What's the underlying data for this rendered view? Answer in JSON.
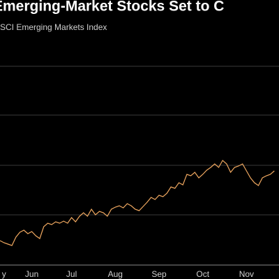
{
  "chart_data": {
    "type": "line",
    "title": "Emerging-Market Stocks Set to C",
    "subtitle": "SCI Emerging Markets Index",
    "categories": [
      null,
      "y",
      null,
      null,
      null,
      null,
      null,
      null,
      "Jun",
      null,
      null,
      null,
      null,
      null,
      null,
      null,
      null,
      null,
      "Jul",
      null,
      null,
      null,
      null,
      null,
      null,
      null,
      null,
      null,
      null,
      "Aug",
      null,
      null,
      null,
      null,
      null,
      null,
      null,
      null,
      null,
      null,
      "Sep",
      null,
      null,
      null,
      null,
      null,
      null,
      null,
      null,
      null,
      null,
      "Oct",
      null,
      null,
      null,
      null,
      null,
      null,
      null,
      null,
      null,
      null,
      "Nov",
      null,
      null,
      null,
      null,
      null,
      null,
      null
    ],
    "values": [
      900,
      897,
      895,
      893,
      905,
      912,
      915,
      910,
      913,
      907,
      903,
      920,
      925,
      923,
      927,
      925,
      928,
      925,
      933,
      927,
      935,
      940,
      935,
      945,
      937,
      942,
      940,
      935,
      945,
      948,
      950,
      947,
      953,
      950,
      945,
      943,
      949,
      955,
      962,
      959,
      965,
      963,
      968,
      977,
      975,
      983,
      980,
      995,
      993,
      998,
      990,
      995,
      1001,
      1005,
      1010,
      1005,
      1015,
      1010,
      998,
      1005,
      1007,
      1010,
      1000,
      990,
      983,
      979,
      990,
      993,
      995,
      1000
    ],
    "color": "#f0a860",
    "ylim": [
      850,
      1205
    ]
  }
}
